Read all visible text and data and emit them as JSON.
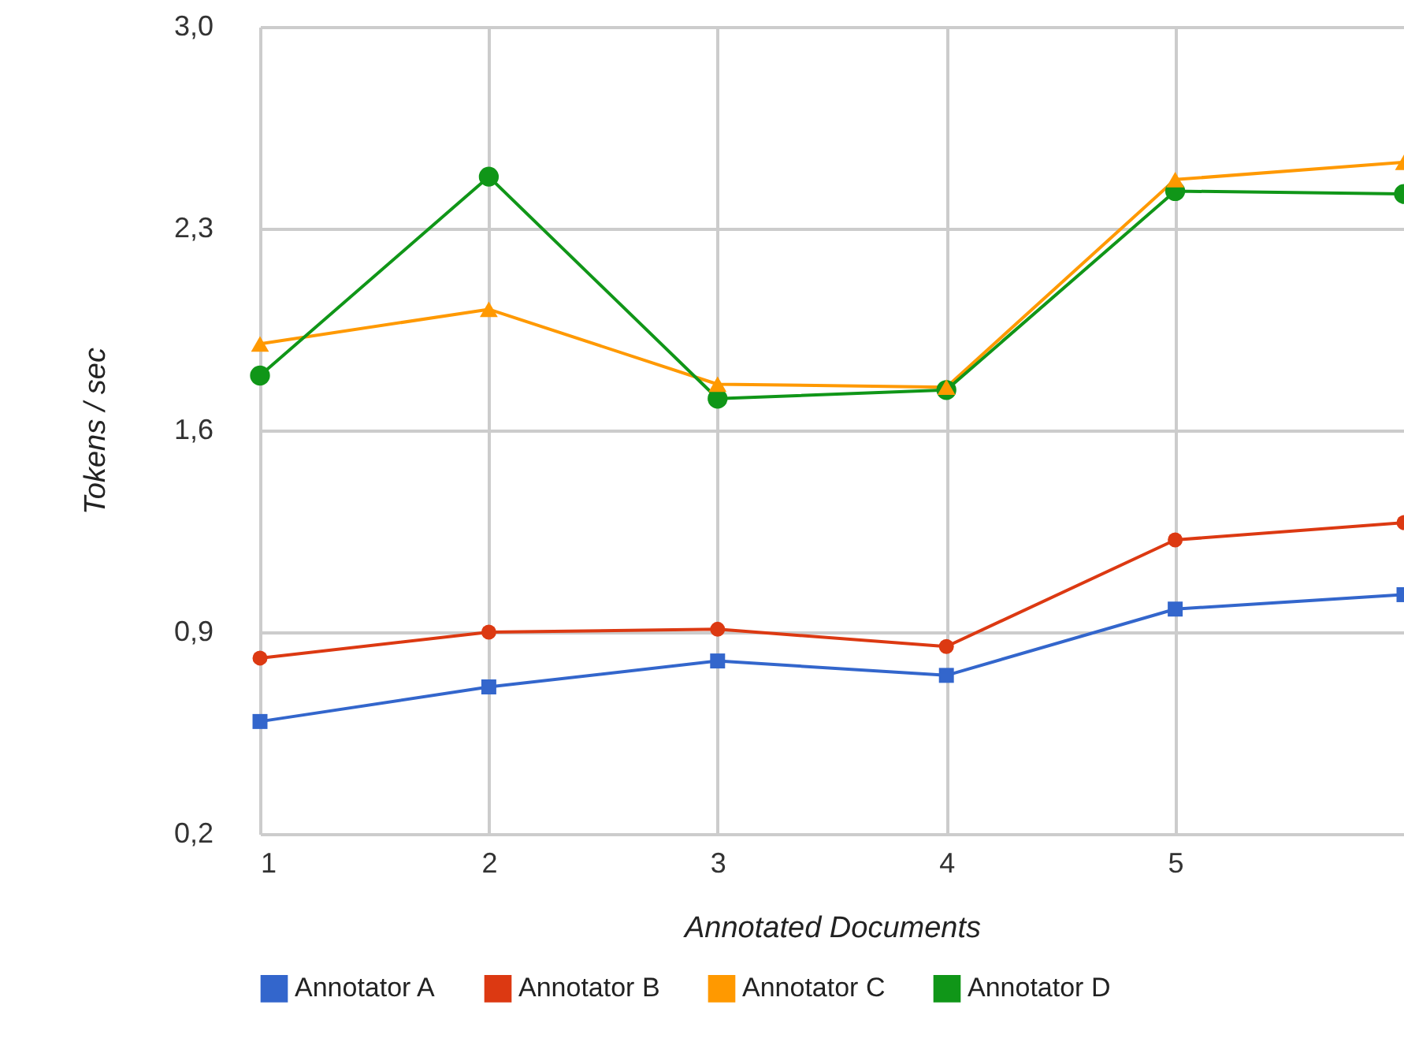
{
  "chart_data": {
    "type": "line",
    "xlabel": "Annotated Documents",
    "ylabel": "Tokens / sec",
    "x": [
      1,
      2,
      3,
      4,
      5,
      6
    ],
    "series": [
      {
        "name": "Annotator A",
        "color": "#3366cc",
        "marker": "square",
        "values": [
          0.59,
          0.71,
          0.8,
          0.75,
          0.98,
          1.03
        ]
      },
      {
        "name": "Annotator B",
        "color": "#dc3912",
        "marker": "circle",
        "values": [
          0.81,
          0.9,
          0.91,
          0.85,
          1.22,
          1.28
        ]
      },
      {
        "name": "Annotator C",
        "color": "#ff9900",
        "marker": "triangle",
        "values": [
          1.9,
          2.02,
          1.76,
          1.75,
          2.47,
          2.53
        ]
      },
      {
        "name": "Annotator D",
        "color": "#109618",
        "marker": "circle",
        "values": [
          1.79,
          2.48,
          1.71,
          1.74,
          2.43,
          2.42
        ]
      }
    ],
    "xlim": [
      1,
      6
    ],
    "xticks": [
      1,
      2,
      3,
      4,
      5
    ],
    "ylim": [
      0.2,
      3.0
    ],
    "yticks": [
      {
        "value": 0.2,
        "label": "0,2"
      },
      {
        "value": 0.9,
        "label": "0,9"
      },
      {
        "value": 1.6,
        "label": "1,6"
      },
      {
        "value": 2.3,
        "label": "2,3"
      },
      {
        "value": 3.0,
        "label": "3,0"
      }
    ],
    "grid": true,
    "legend": "bottom",
    "line_style": "solid"
  }
}
